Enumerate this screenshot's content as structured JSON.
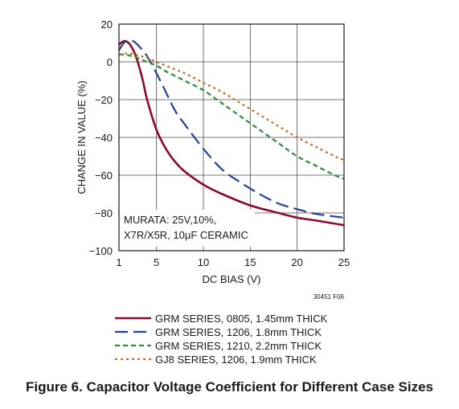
{
  "chart_data": {
    "type": "line",
    "title": "",
    "xlabel": "DC BIAS (V)",
    "ylabel": "CHANGE IN VALUE (%)",
    "xlim": [
      1,
      25
    ],
    "ylim": [
      -100,
      20
    ],
    "xticks": [
      1,
      5,
      10,
      15,
      20,
      25
    ],
    "yticks": [
      20,
      0,
      -20,
      -40,
      -60,
      -80,
      -100
    ],
    "ytick_labels": [
      "20",
      "0",
      "−20",
      "−40",
      "−60",
      "−80",
      "−100"
    ],
    "grid": true,
    "annotation_lines": [
      "MURATA: 25V,10%,",
      "X7R/X5R, 10µF CERAMIC"
    ],
    "figure_id": "30451 F06",
    "legend_position": "bottom",
    "series": [
      {
        "name": "GRM SERIES, 0805, 1.45mm THICK",
        "color": "#8b0a2e",
        "dash": "solid",
        "points": [
          [
            1,
            9
          ],
          [
            1.3,
            10.5
          ],
          [
            1.7,
            11
          ],
          [
            2.2,
            9
          ],
          [
            2.8,
            3
          ],
          [
            3.5,
            -9
          ],
          [
            4,
            -20
          ],
          [
            5,
            -36
          ],
          [
            6,
            -46
          ],
          [
            7,
            -53
          ],
          [
            8,
            -58
          ],
          [
            10,
            -65
          ],
          [
            12,
            -70
          ],
          [
            15,
            -76
          ],
          [
            18,
            -80
          ],
          [
            20,
            -82.5
          ],
          [
            22,
            -84
          ],
          [
            25,
            -86.5
          ]
        ]
      },
      {
        "name": "GRM SERIES, 1206, 1.8mm THICK",
        "color": "#23409a",
        "dash": "long-dash",
        "points": [
          [
            1,
            6
          ],
          [
            1.5,
            10
          ],
          [
            2,
            11.5
          ],
          [
            2.5,
            11
          ],
          [
            3,
            9
          ],
          [
            4,
            3
          ],
          [
            5,
            -6
          ],
          [
            6,
            -16
          ],
          [
            7,
            -26
          ],
          [
            8,
            -33
          ],
          [
            10,
            -46
          ],
          [
            12,
            -57
          ],
          [
            14,
            -64
          ],
          [
            16,
            -70
          ],
          [
            18,
            -75
          ],
          [
            20,
            -78
          ],
          [
            22,
            -80.5
          ],
          [
            25,
            -82.5
          ]
        ]
      },
      {
        "name": "GRM SERIES, 1210, 2.2mm THICK",
        "color": "#2e8b3e",
        "dash": "dash",
        "points": [
          [
            1,
            4
          ],
          [
            2,
            3.5
          ],
          [
            3,
            2
          ],
          [
            4,
            0
          ],
          [
            5,
            -2
          ],
          [
            6,
            -5
          ],
          [
            7,
            -7.5
          ],
          [
            8,
            -10
          ],
          [
            10,
            -15
          ],
          [
            12,
            -22
          ],
          [
            14,
            -29
          ],
          [
            15,
            -32.5
          ],
          [
            16,
            -36
          ],
          [
            18,
            -43
          ],
          [
            20,
            -50
          ],
          [
            22,
            -55
          ],
          [
            24,
            -60
          ],
          [
            25,
            -62
          ]
        ]
      },
      {
        "name": "GJ8 SERIES, 1206, 1.9mm THICK",
        "color": "#c76b28",
        "dash": "dot",
        "points": [
          [
            1,
            4
          ],
          [
            2,
            4.5
          ],
          [
            3,
            3.5
          ],
          [
            4,
            2
          ],
          [
            5,
            0
          ],
          [
            6,
            -2
          ],
          [
            7,
            -4
          ],
          [
            8,
            -6
          ],
          [
            10,
            -11
          ],
          [
            12,
            -16
          ],
          [
            14,
            -22
          ],
          [
            16,
            -28
          ],
          [
            18,
            -34
          ],
          [
            20,
            -40
          ],
          [
            22,
            -45
          ],
          [
            24,
            -50
          ],
          [
            25,
            -52
          ]
        ]
      }
    ]
  },
  "caption": "Figure 6. Capacitor Voltage Coefficient for Different Case Sizes"
}
